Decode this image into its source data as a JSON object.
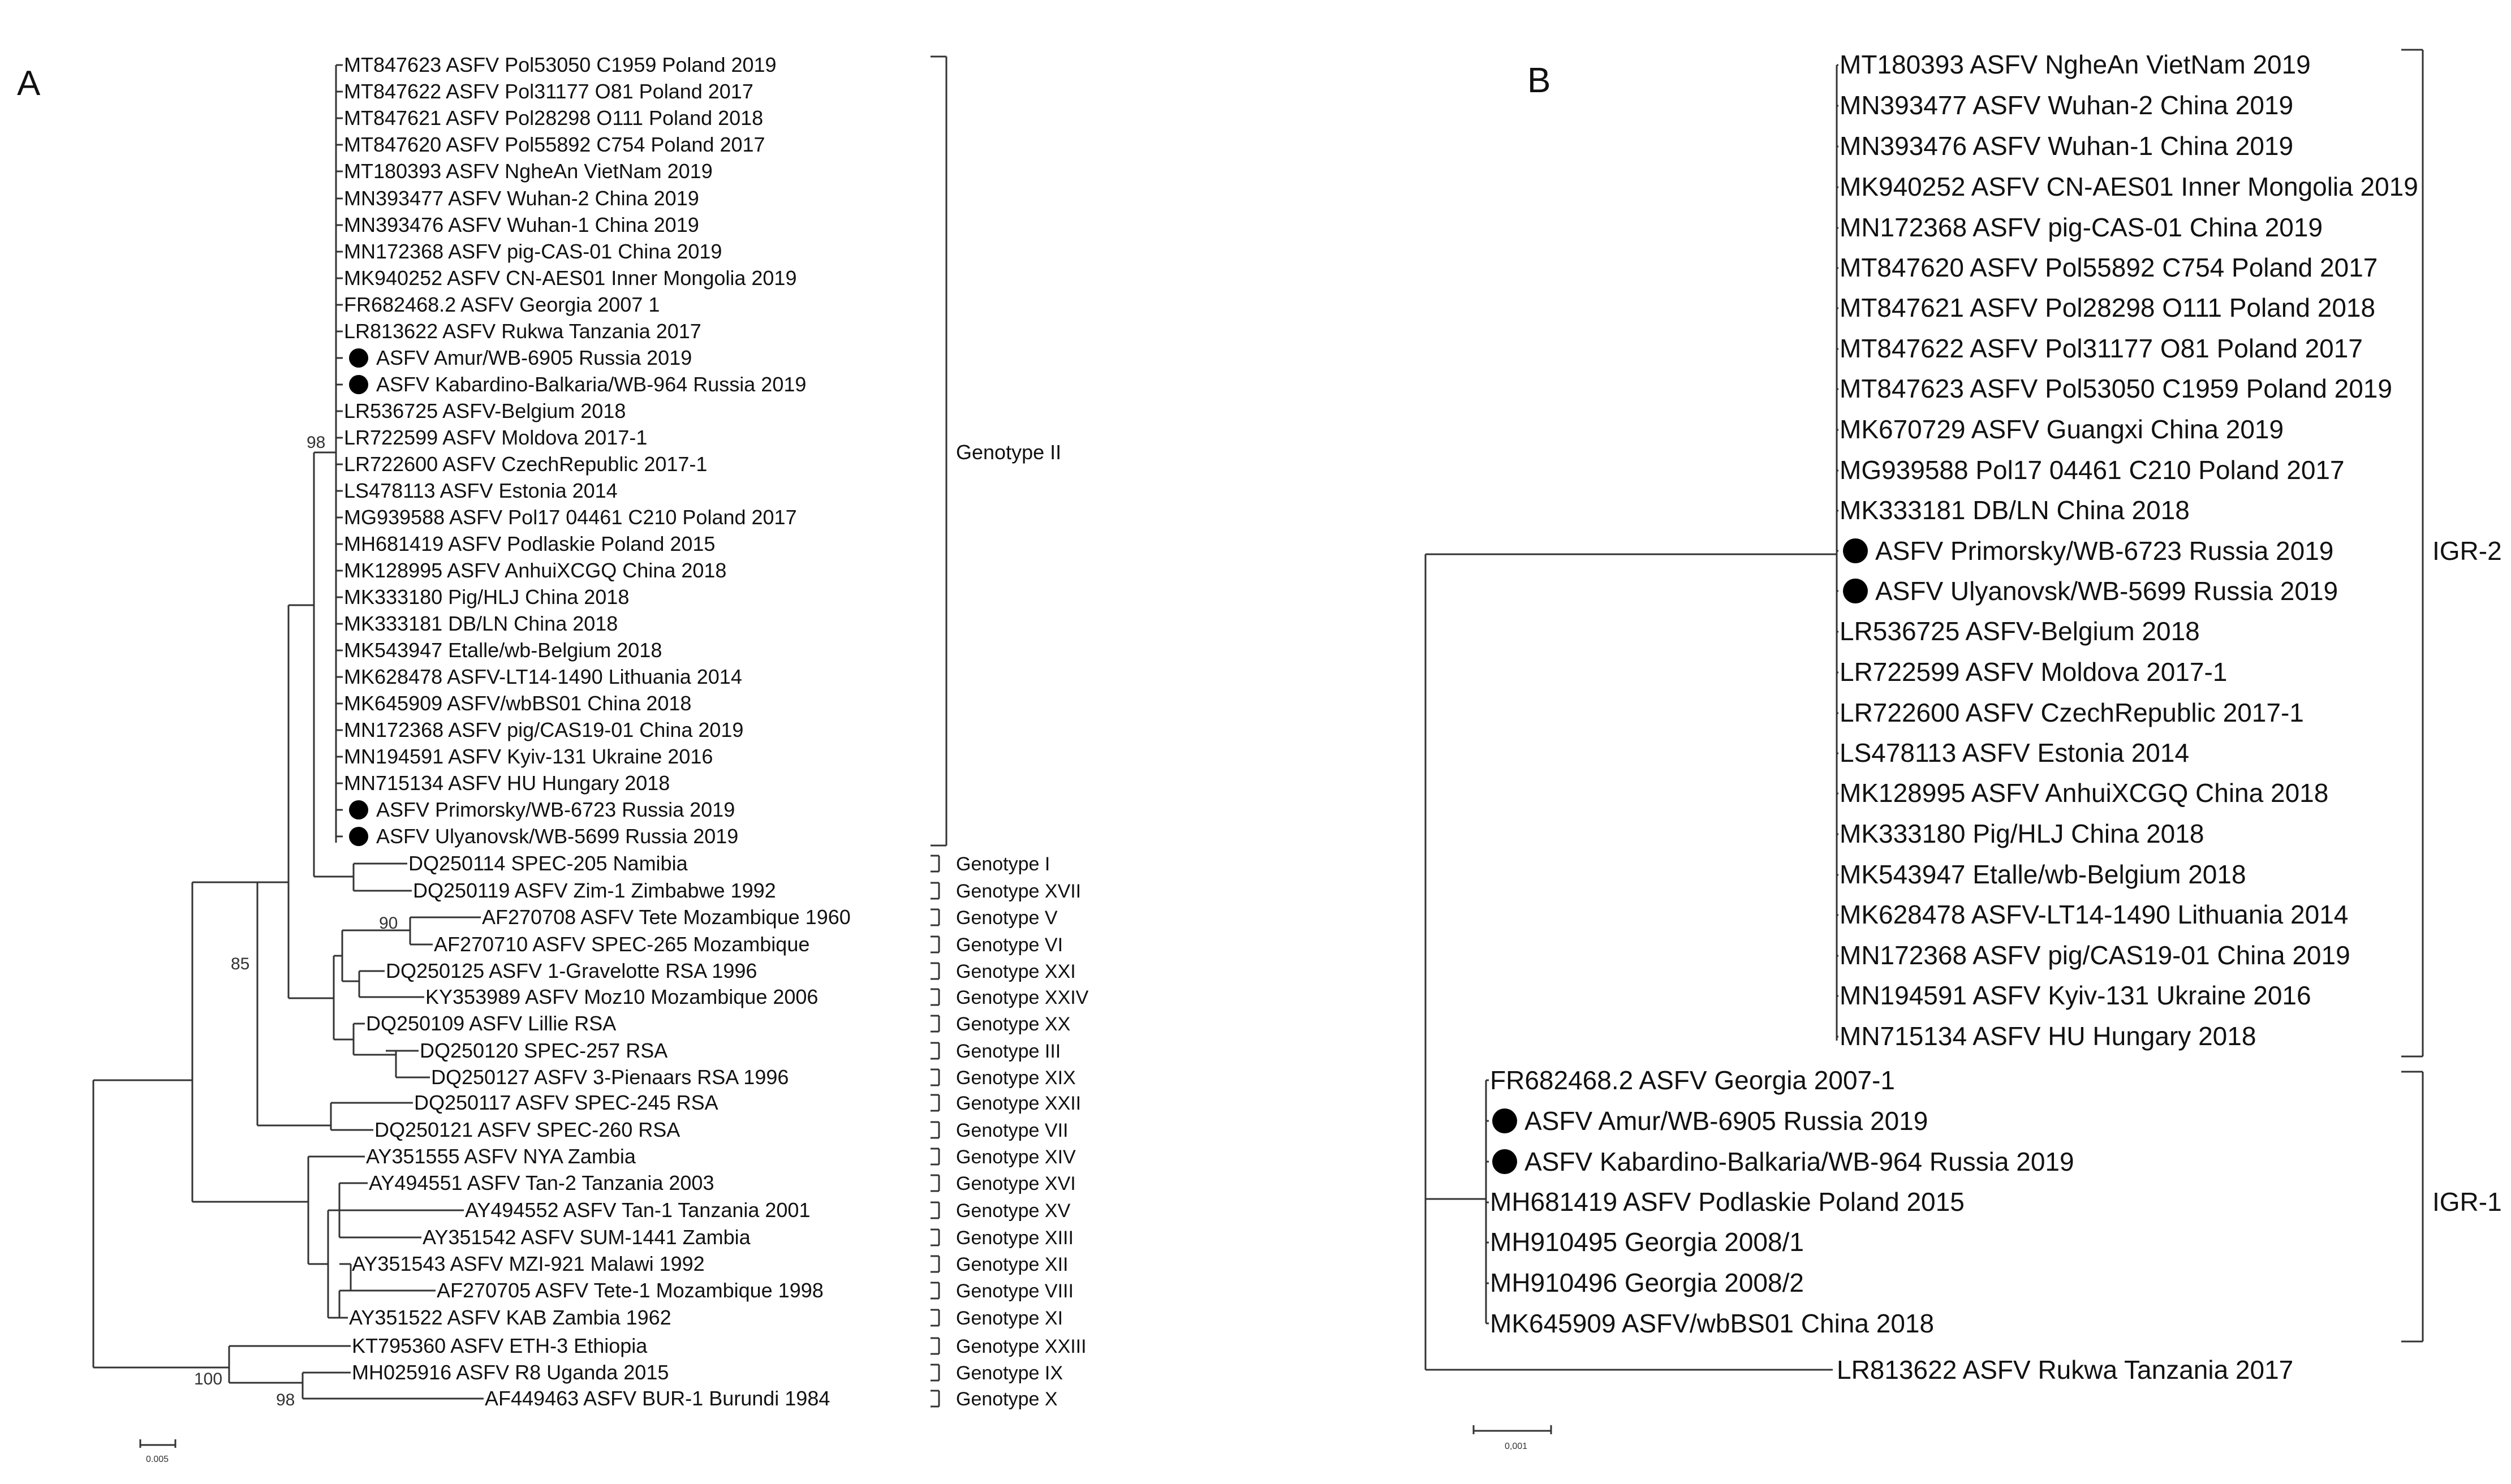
{
  "panelA": {
    "letter": "A",
    "taxa": [
      "MT847623 ASFV Pol53050 C1959 Poland 2019",
      "MT847622 ASFV Pol31177 O81 Poland 2017",
      "MT847621 ASFV Pol28298 O111 Poland 2018",
      "MT847620 ASFV Pol55892 C754 Poland 2017",
      "MT180393 ASFV NgheAn VietNam 2019",
      "MN393477 ASFV Wuhan-2 China 2019",
      "MN393476 ASFV Wuhan-1 China 2019",
      "MN172368 ASFV pig-CAS-01 China 2019",
      "MK940252 ASFV CN-AES01 Inner Mongolia 2019",
      "FR682468.2 ASFV Georgia 2007 1",
      "LR813622 ASFV Rukwa Tanzania 2017",
      "ASFV Amur/WB-6905 Russia 2019",
      "ASFV Kabardino-Balkaria/WB-964 Russia 2019",
      "LR536725 ASFV-Belgium 2018",
      "LR722599 ASFV Moldova 2017-1",
      "LR722600 ASFV CzechRepublic 2017-1",
      "LS478113 ASFV Estonia 2014",
      "MG939588 ASFV Pol17 04461 C210 Poland 2017",
      "MH681419 ASFV Podlaskie Poland 2015",
      "MK128995 ASFV AnhuiXCGQ China 2018",
      "MK333180 Pig/HLJ China 2018",
      "MK333181 DB/LN China 2018",
      "MK543947 Etalle/wb-Belgium 2018",
      "MK628478 ASFV-LT14-1490 Lithuania 2014",
      "MK645909 ASFV/wbBS01 China 2018",
      "MN172368 ASFV pig/CAS19-01 China 2019",
      "MN194591 ASFV Kyiv-131 Ukraine 2016",
      "MN715134 ASFV HU Hungary 2018",
      "ASFV Primorsky/WB-6723 Russia 2019",
      "ASFV Ulyanovsk/WB-5699 Russia 2019",
      "DQ250114 SPEC-205 Namibia",
      "DQ250119 ASFV Zim-1 Zimbabwe 1992",
      "AF270708 ASFV Tete Mozambique 1960",
      "AF270710 ASFV SPEC-265 Mozambique",
      "DQ250125 ASFV 1-Gravelotte RSA 1996",
      "KY353989 ASFV Moz10 Mozambique 2006",
      "DQ250109 ASFV Lillie RSA",
      "DQ250120 SPEC-257 RSA",
      "DQ250127 ASFV 3-Pienaars RSA 1996",
      "DQ250117 ASFV SPEC-245 RSA",
      "DQ250121 ASFV SPEC-260 RSA",
      "AY351555 ASFV NYA Zambia",
      "AY494551 ASFV Tan-2 Tanzania 2003",
      "AY494552 ASFV Tan-1 Tanzania 2001",
      "AY351542 ASFV SUM-1441 Zambia",
      "AY351543 ASFV MZI-921 Malawi 1992",
      "AF270705 ASFV Tete-1 Mozambique 1998",
      "AY351522 ASFV KAB Zambia 1962",
      "KT795360 ASFV ETH-3 Ethiopia",
      "MH025916 ASFV R8 Uganda 2015",
      "AF449463 ASFV BUR-1 Burundi 1984"
    ],
    "genotype_ii": "Genotype II",
    "genotypes": [
      "Genotype I",
      "Genotype XVII",
      "Genotype V",
      "Genotype VI",
      "Genotype XXI",
      "Genotype XXIV",
      "Genotype XX",
      "Genotype III",
      "Genotype XIX",
      "Genotype XXII",
      "Genotype VII",
      "Genotype XIV",
      "Genotype XVI",
      "Genotype XV",
      "Genotype XIII",
      "Genotype XII",
      "Genotype VIII",
      "Genotype XI",
      "Genotype XXIII",
      "Genotype IX",
      "Genotype X"
    ],
    "bootstrap": {
      "b98_top": "98",
      "b85": "85",
      "b90": "90",
      "b100": "100",
      "b98_bottom": "98"
    },
    "scale": "0.005"
  },
  "panelB": {
    "letter": "B",
    "taxa": [
      "MT180393 ASFV NgheAn VietNam 2019",
      "MN393477 ASFV Wuhan-2 China 2019",
      "MN393476 ASFV Wuhan-1 China 2019",
      "MK940252 ASFV CN-AES01 Inner Mongolia 2019",
      "MN172368 ASFV pig-CAS-01 China 2019",
      "MT847620 ASFV Pol55892 C754 Poland 2017",
      "MT847621 ASFV Pol28298 O111 Poland 2018",
      "MT847622 ASFV Pol31177 O81 Poland 2017",
      "MT847623 ASFV Pol53050 C1959 Poland 2019",
      "MK670729 ASFV Guangxi China 2019",
      "MG939588 Pol17 04461 C210 Poland 2017",
      "MK333181 DB/LN China 2018",
      "ASFV Primorsky/WB-6723 Russia 2019",
      "ASFV Ulyanovsk/WB-5699 Russia 2019",
      "LR536725 ASFV-Belgium 2018",
      "LR722599 ASFV Moldova 2017-1",
      "LR722600 ASFV CzechRepublic 2017-1",
      "LS478113 ASFV Estonia 2014",
      "MK128995 ASFV AnhuiXCGQ China 2018",
      "MK333180 Pig/HLJ China 2018",
      "MK543947 Etalle/wb-Belgium 2018",
      "MK628478 ASFV-LT14-1490 Lithuania 2014",
      "MN172368 ASFV pig/CAS19-01 China 2019",
      "MN194591 ASFV Kyiv-131 Ukraine 2016",
      "MN715134 ASFV HU Hungary 2018",
      "FR682468.2 ASFV Georgia 2007-1",
      "ASFV Amur/WB-6905 Russia 2019",
      "ASFV Kabardino-Balkaria/WB-964 Russia 2019",
      "MH681419 ASFV Podlaskie Poland 2015",
      "MH910495 Georgia 2008/1",
      "MH910496 Georgia 2008/2",
      "MK645909 ASFV/wbBS01 China 2018",
      "LR813622 ASFV Rukwa Tanzania 2017"
    ],
    "groups": [
      "IGR-2",
      "IGR-1"
    ],
    "scale": "0,001"
  }
}
